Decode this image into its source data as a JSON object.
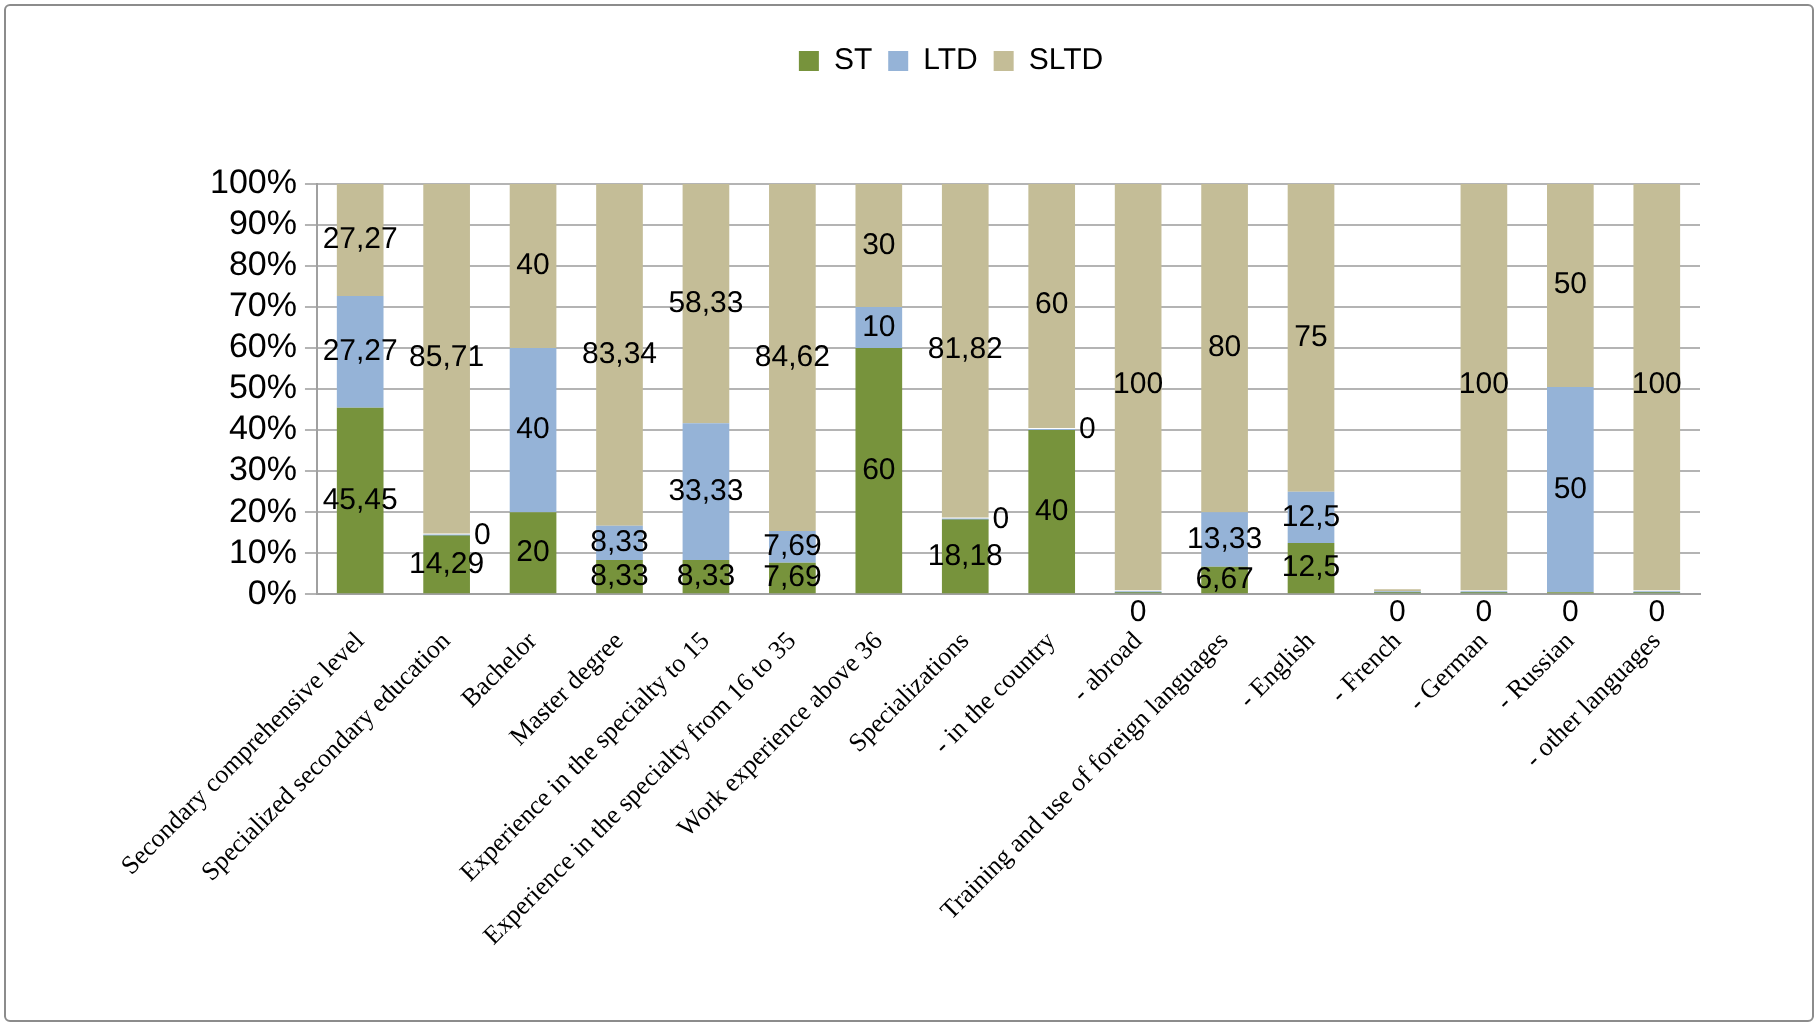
{
  "chart_data": {
    "type": "bar",
    "stacked": true,
    "categories": [
      "Secondary comprehensive level",
      "Specialized secondary education",
      "Bachelor",
      "Master degree",
      "Experience in the specialty to 15",
      "Experience in the specialty from 16 to 35",
      "Work experience above 36",
      "Specializations",
      "- in the country",
      "- abroad",
      "Training and use of foreign languages",
      "- English",
      "- French",
      "- German",
      "- Russian",
      "- other languages"
    ],
    "series": [
      {
        "name": "ST",
        "color": "#77933c",
        "values": [
          45.45,
          14.29,
          20,
          8.33,
          8.33,
          7.69,
          60,
          18.18,
          40,
          0,
          6.67,
          12.5,
          0,
          0,
          0,
          0
        ],
        "value_labels": [
          "45,45",
          "14,29",
          "20",
          "8,33",
          "8,33",
          "7,69",
          "60",
          "18,18",
          "40",
          "0",
          "6,67",
          "12,5",
          "0",
          "0",
          "0",
          "0"
        ]
      },
      {
        "name": "LTD",
        "color": "#95b3d7",
        "values": [
          27.27,
          0,
          40,
          8.33,
          33.33,
          7.69,
          10,
          0,
          0,
          0,
          13.33,
          12.5,
          0,
          0,
          50,
          0
        ],
        "value_labels": [
          "27,27",
          "0",
          "40",
          "8,33",
          "33,33",
          "7,69",
          "10",
          "0",
          "0",
          null,
          "13,33",
          "12,5",
          null,
          null,
          "50",
          null
        ]
      },
      {
        "name": "SLTD",
        "color": "#c4bd97",
        "values": [
          27.27,
          85.71,
          40,
          83.34,
          58.33,
          84.62,
          30,
          81.82,
          60,
          100,
          80,
          75,
          0,
          100,
          50,
          100
        ],
        "value_labels": [
          "27,27",
          "85,71",
          "40",
          "83,34",
          "58,33",
          "84,62",
          "30",
          "81,82",
          "60",
          "100",
          "80",
          "75",
          null,
          "100",
          "50",
          "100"
        ]
      }
    ],
    "ylim": [
      0,
      100
    ],
    "yticks": [
      {
        "value": 0,
        "label": "0%"
      },
      {
        "value": 10,
        "label": "10%"
      },
      {
        "value": 20,
        "label": "20%"
      },
      {
        "value": 30,
        "label": "30%"
      },
      {
        "value": 40,
        "label": "40%"
      },
      {
        "value": 50,
        "label": "50%"
      },
      {
        "value": 60,
        "label": "60%"
      },
      {
        "value": 70,
        "label": "70%"
      },
      {
        "value": 80,
        "label": "80%"
      },
      {
        "value": 90,
        "label": "90%"
      },
      {
        "value": 100,
        "label": "100%"
      }
    ],
    "grid": "y",
    "legend": "top"
  }
}
